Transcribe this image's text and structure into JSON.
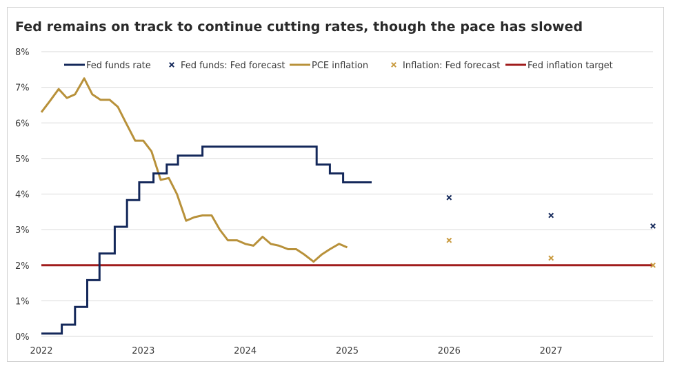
{
  "chart_data": {
    "type": "line",
    "title": "Fed remains on track to continue cutting rates, though the pace has slowed",
    "xlabel": "",
    "ylabel": "",
    "ylim": [
      0,
      8
    ],
    "x_range": [
      2022.0,
      2028.0
    ],
    "grid": "horizontal",
    "legend_position": "top",
    "x_tick_labels": [
      "2022",
      "2023",
      "2024",
      "2025",
      "2026",
      "2027"
    ],
    "x_tick_positions": [
      2022,
      2023,
      2024,
      2025,
      2026,
      2027
    ],
    "y_tick_labels": [
      "0%",
      "1%",
      "2%",
      "3%",
      "4%",
      "5%",
      "6%",
      "7%",
      "8%"
    ],
    "y_tick_values": [
      0,
      1,
      2,
      3,
      4,
      5,
      6,
      7,
      8
    ],
    "series": [
      {
        "name": "Fed funds rate",
        "kind": "step",
        "color": "#14285a",
        "points": [
          [
            2022.0,
            0.08
          ],
          [
            2022.2,
            0.08
          ],
          [
            2022.2,
            0.33
          ],
          [
            2022.33,
            0.33
          ],
          [
            2022.33,
            0.83
          ],
          [
            2022.45,
            0.83
          ],
          [
            2022.45,
            1.58
          ],
          [
            2022.57,
            1.58
          ],
          [
            2022.57,
            2.33
          ],
          [
            2022.72,
            2.33
          ],
          [
            2022.72,
            3.08
          ],
          [
            2022.84,
            3.08
          ],
          [
            2022.84,
            3.83
          ],
          [
            2022.96,
            3.83
          ],
          [
            2022.96,
            4.33
          ],
          [
            2023.1,
            4.33
          ],
          [
            2023.1,
            4.58
          ],
          [
            2023.23,
            4.58
          ],
          [
            2023.23,
            4.83
          ],
          [
            2023.34,
            4.83
          ],
          [
            2023.34,
            5.08
          ],
          [
            2023.58,
            5.08
          ],
          [
            2023.58,
            5.33
          ],
          [
            2024.7,
            5.33
          ],
          [
            2024.7,
            4.83
          ],
          [
            2024.83,
            4.83
          ],
          [
            2024.83,
            4.58
          ],
          [
            2024.96,
            4.58
          ],
          [
            2024.96,
            4.33
          ],
          [
            2025.24,
            4.33
          ]
        ]
      },
      {
        "name": "Fed funds: Fed forecast",
        "kind": "marker",
        "color": "#14285a",
        "points": [
          [
            2026.0,
            3.9
          ],
          [
            2027.0,
            3.4
          ],
          [
            2028.0,
            3.1
          ]
        ]
      },
      {
        "name": "PCE inflation",
        "kind": "line",
        "color": "#b8913a",
        "points": [
          [
            2022.0,
            6.3
          ],
          [
            2022.08,
            6.6
          ],
          [
            2022.17,
            6.95
          ],
          [
            2022.25,
            6.7
          ],
          [
            2022.33,
            6.8
          ],
          [
            2022.42,
            7.25
          ],
          [
            2022.5,
            6.8
          ],
          [
            2022.58,
            6.65
          ],
          [
            2022.67,
            6.65
          ],
          [
            2022.75,
            6.45
          ],
          [
            2022.83,
            6.0
          ],
          [
            2022.92,
            5.5
          ],
          [
            2023.0,
            5.5
          ],
          [
            2023.08,
            5.2
          ],
          [
            2023.17,
            4.4
          ],
          [
            2023.25,
            4.45
          ],
          [
            2023.33,
            4.0
          ],
          [
            2023.42,
            3.25
          ],
          [
            2023.5,
            3.35
          ],
          [
            2023.58,
            3.4
          ],
          [
            2023.67,
            3.4
          ],
          [
            2023.75,
            3.0
          ],
          [
            2023.83,
            2.7
          ],
          [
            2023.92,
            2.7
          ],
          [
            2024.0,
            2.6
          ],
          [
            2024.08,
            2.55
          ],
          [
            2024.17,
            2.8
          ],
          [
            2024.25,
            2.6
          ],
          [
            2024.33,
            2.55
          ],
          [
            2024.42,
            2.45
          ],
          [
            2024.5,
            2.45
          ],
          [
            2024.58,
            2.3
          ],
          [
            2024.67,
            2.1
          ],
          [
            2024.75,
            2.3
          ],
          [
            2024.83,
            2.45
          ],
          [
            2024.92,
            2.6
          ],
          [
            2025.0,
            2.5
          ]
        ]
      },
      {
        "name": "Inflation: Fed forecast",
        "kind": "marker",
        "color": "#c99a3e",
        "points": [
          [
            2026.0,
            2.7
          ],
          [
            2027.0,
            2.2
          ],
          [
            2028.0,
            2.0
          ]
        ]
      },
      {
        "name": "Fed inflation target",
        "kind": "hline",
        "color": "#a01c1c",
        "points": [
          [
            2022.0,
            2.0
          ],
          [
            2028.0,
            2.0
          ]
        ]
      }
    ]
  }
}
